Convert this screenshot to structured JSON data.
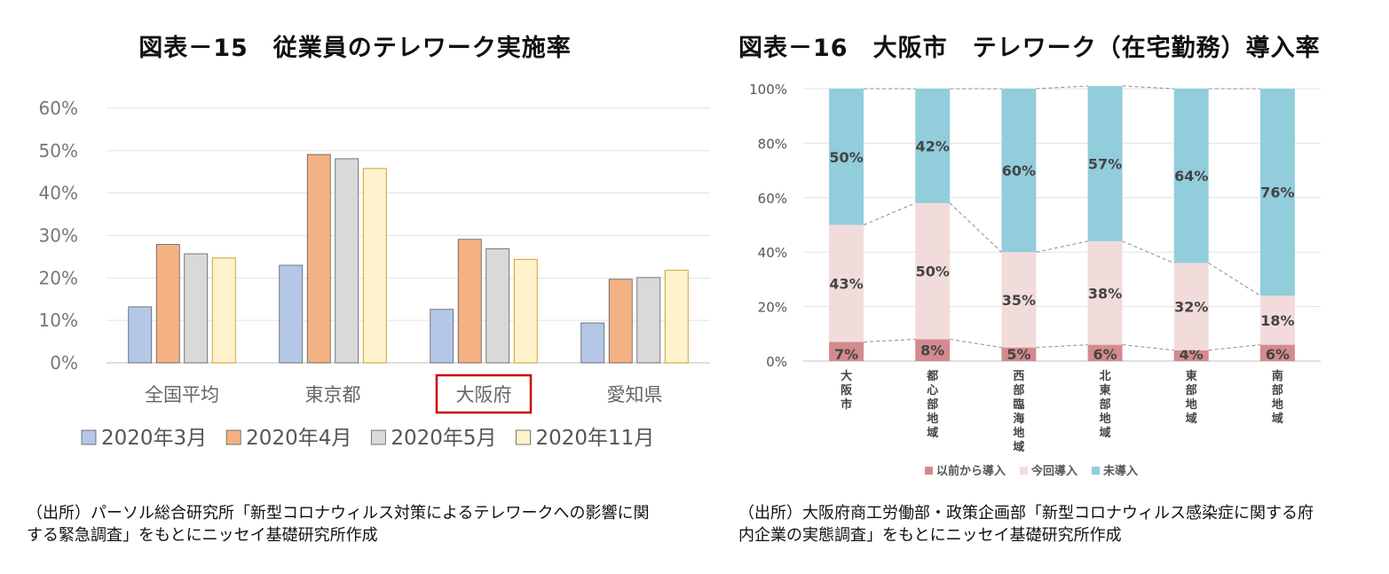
{
  "left": {
    "title": "図表－15　従業員のテレワーク実施率",
    "source_lines": [
      "（出所）パーソル総合研究所「新型コロナウィルス対策によるテレワークへの影響に関",
      "する緊急調査」をもとにニッセイ基礎研究所作成"
    ],
    "highlight_color": "#cc0000"
  },
  "right": {
    "title": "図表－16　大阪市　テレワーク（在宅勤務）導入率",
    "source_lines": [
      "（出所）大阪府商工労働部・政策企画部「新型コロナウィルス感染症に関する府",
      "内企業の実態調査」をもとにニッセイ基礎研究所作成"
    ]
  },
  "chart_data": [
    {
      "type": "bar",
      "categories": [
        "全国平均",
        "東京都",
        "大阪府",
        "愛知県"
      ],
      "highlighted_category": "大阪府",
      "series": [
        {
          "name": "2020年3月",
          "color": "#b4c7e7",
          "values": [
            13.2,
            23.0,
            12.6,
            9.4
          ]
        },
        {
          "name": "2020年4月",
          "color": "#f4b183",
          "values": [
            27.9,
            49.1,
            29.1,
            19.7
          ]
        },
        {
          "name": "2020年5月",
          "color": "#d9d9d9",
          "values": [
            25.7,
            48.1,
            26.9,
            20.1
          ]
        },
        {
          "name": "2020年11月",
          "color": "#fff2cc",
          "values": [
            24.7,
            45.8,
            24.4,
            21.8
          ]
        }
      ],
      "y_ticks": [
        "0%",
        "10%",
        "20%",
        "30%",
        "40%",
        "50%",
        "60%"
      ],
      "ylim": [
        0,
        60
      ],
      "grid": true,
      "legend": "bottom"
    },
    {
      "type": "bar",
      "stacked": true,
      "categories": [
        "大阪市",
        "都心部地域",
        "西部臨海地域",
        "北東部地域",
        "東部地域",
        "南部地域"
      ],
      "series": [
        {
          "name": "以前から導入",
          "color": "#d48a8e",
          "values": [
            7,
            8,
            5,
            6,
            4,
            6
          ],
          "labels": [
            "7%",
            "8%",
            "5%",
            "6%",
            "4%",
            "6%"
          ]
        },
        {
          "name": "今回導入",
          "color": "#f2dcdb",
          "values": [
            43,
            50,
            35,
            38,
            32,
            18
          ],
          "labels": [
            "43%",
            "50%",
            "35%",
            "38%",
            "32%",
            "18%"
          ]
        },
        {
          "name": "未導入",
          "color": "#92cddc",
          "values": [
            50,
            42,
            60,
            57,
            64,
            76
          ],
          "labels": [
            "50%",
            "42%",
            "60%",
            "57%",
            "64%",
            "76%"
          ]
        }
      ],
      "y_ticks": [
        "0%",
        "20%",
        "40%",
        "60%",
        "80%",
        "100%"
      ],
      "ylim": [
        0,
        100
      ],
      "grid": true,
      "legend": "bottom",
      "connector_lines": "dashed"
    }
  ]
}
